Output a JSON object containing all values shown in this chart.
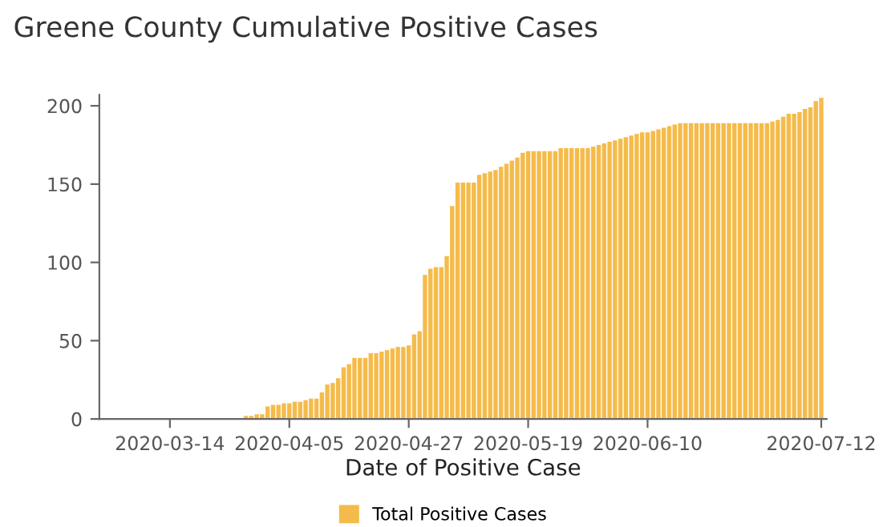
{
  "chart_data": {
    "type": "bar",
    "title": "Greene County Cumulative Positive Cases",
    "xlabel": "Date of Positive Case",
    "x": [
      "2020-03-28",
      "2020-03-29",
      "2020-03-30",
      "2020-03-31",
      "2020-04-01",
      "2020-04-02",
      "2020-04-03",
      "2020-04-04",
      "2020-04-05",
      "2020-04-06",
      "2020-04-07",
      "2020-04-08",
      "2020-04-09",
      "2020-04-10",
      "2020-04-11",
      "2020-04-12",
      "2020-04-13",
      "2020-04-14",
      "2020-04-15",
      "2020-04-16",
      "2020-04-17",
      "2020-04-18",
      "2020-04-19",
      "2020-04-20",
      "2020-04-21",
      "2020-04-22",
      "2020-04-23",
      "2020-04-24",
      "2020-04-25",
      "2020-04-26",
      "2020-04-27",
      "2020-04-28",
      "2020-04-29",
      "2020-04-30",
      "2020-05-01",
      "2020-05-02",
      "2020-05-03",
      "2020-05-04",
      "2020-05-05",
      "2020-05-06",
      "2020-05-07",
      "2020-05-08",
      "2020-05-09",
      "2020-05-10",
      "2020-05-11",
      "2020-05-12",
      "2020-05-13",
      "2020-05-14",
      "2020-05-15",
      "2020-05-16",
      "2020-05-17",
      "2020-05-18",
      "2020-05-19",
      "2020-05-20",
      "2020-05-21",
      "2020-05-22",
      "2020-05-23",
      "2020-05-24",
      "2020-05-25",
      "2020-05-26",
      "2020-05-27",
      "2020-05-28",
      "2020-05-29",
      "2020-05-30",
      "2020-05-31",
      "2020-06-01",
      "2020-06-02",
      "2020-06-03",
      "2020-06-04",
      "2020-06-05",
      "2020-06-06",
      "2020-06-07",
      "2020-06-08",
      "2020-06-09",
      "2020-06-10",
      "2020-06-11",
      "2020-06-12",
      "2020-06-13",
      "2020-06-14",
      "2020-06-15",
      "2020-06-16",
      "2020-06-17",
      "2020-06-18",
      "2020-06-19",
      "2020-06-20",
      "2020-06-21",
      "2020-06-22",
      "2020-06-23",
      "2020-06-24",
      "2020-06-25",
      "2020-06-26",
      "2020-06-27",
      "2020-06-28",
      "2020-06-29",
      "2020-06-30",
      "2020-07-01",
      "2020-07-02",
      "2020-07-03",
      "2020-07-04",
      "2020-07-05",
      "2020-07-06",
      "2020-07-07",
      "2020-07-08",
      "2020-07-09",
      "2020-07-10",
      "2020-07-11",
      "2020-07-12"
    ],
    "series": [
      {
        "name": "Total Positive Cases",
        "color": "#f5bb4a",
        "values": [
          2,
          2,
          3,
          3,
          8,
          9,
          9,
          10,
          10,
          11,
          11,
          12,
          13,
          13,
          17,
          22,
          23,
          26,
          33,
          35,
          39,
          39,
          39,
          42,
          42,
          43,
          44,
          45,
          46,
          46,
          47,
          54,
          56,
          92,
          96,
          97,
          97,
          104,
          136,
          151,
          151,
          151,
          151,
          156,
          157,
          158,
          159,
          161,
          163,
          165,
          167,
          170,
          171,
          171,
          171,
          171,
          171,
          171,
          173,
          173,
          173,
          173,
          173,
          173,
          174,
          175,
          176,
          177,
          178,
          179,
          180,
          181,
          182,
          183,
          183,
          184,
          185,
          186,
          187,
          188,
          189,
          189,
          189,
          189,
          189,
          189,
          189,
          189,
          189,
          189,
          189,
          189,
          189,
          189,
          189,
          189,
          189,
          190,
          191,
          193,
          195,
          195,
          196,
          198,
          199,
          203,
          205
        ]
      }
    ],
    "xlim": [
      "2020-03-01",
      "2020-07-13"
    ],
    "xticks": [
      "2020-03-14",
      "2020-04-05",
      "2020-04-27",
      "2020-05-19",
      "2020-06-10",
      "2020-07-12"
    ],
    "ylim": [
      0,
      207
    ],
    "yticks": [
      0,
      50,
      100,
      150,
      200
    ],
    "grid": false,
    "legend": "bottom"
  }
}
